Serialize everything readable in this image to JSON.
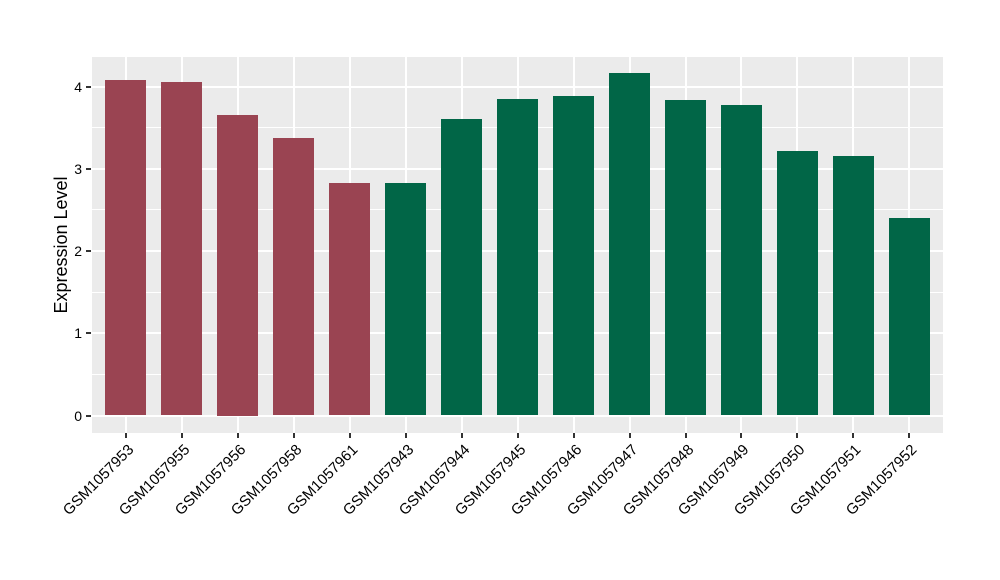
{
  "chart_data": {
    "type": "bar",
    "title": "",
    "xlabel": "",
    "ylabel": "Expression Level",
    "legend_position": "none",
    "grid": "on",
    "panel_background": "#EBEBEB",
    "gridline_color": "#FFFFFF",
    "axis_text_color": "#000000",
    "tick_mark_color": "#333333",
    "ylim": [
      0,
      4.36
    ],
    "yticks": [
      0,
      1,
      2,
      3,
      4
    ],
    "y_minor_gridlines": [
      0.5,
      1.5,
      2.5,
      3.5
    ],
    "group_colors": {
      "groupA": "#9A4452",
      "groupB": "#016647"
    },
    "bars": [
      {
        "label": "GSM1057953",
        "value": 4.08,
        "group": "groupA"
      },
      {
        "label": "GSM1057955",
        "value": 4.05,
        "group": "groupA"
      },
      {
        "label": "GSM1057956",
        "value": 3.66,
        "group": "groupA"
      },
      {
        "label": "GSM1057958",
        "value": 3.37,
        "group": "groupA"
      },
      {
        "label": "GSM1057961",
        "value": 2.83,
        "group": "groupA"
      },
      {
        "label": "GSM1057943",
        "value": 2.83,
        "group": "groupB"
      },
      {
        "label": "GSM1057944",
        "value": 3.6,
        "group": "groupB"
      },
      {
        "label": "GSM1057945",
        "value": 3.85,
        "group": "groupB"
      },
      {
        "label": "GSM1057946",
        "value": 3.88,
        "group": "groupB"
      },
      {
        "label": "GSM1057947",
        "value": 4.16,
        "group": "groupB"
      },
      {
        "label": "GSM1057948",
        "value": 3.84,
        "group": "groupB"
      },
      {
        "label": "GSM1057949",
        "value": 3.78,
        "group": "groupB"
      },
      {
        "label": "GSM1057950",
        "value": 3.22,
        "group": "groupB"
      },
      {
        "label": "GSM1057951",
        "value": 3.16,
        "group": "groupB"
      },
      {
        "label": "GSM1057952",
        "value": 2.4,
        "group": "groupB"
      }
    ]
  }
}
